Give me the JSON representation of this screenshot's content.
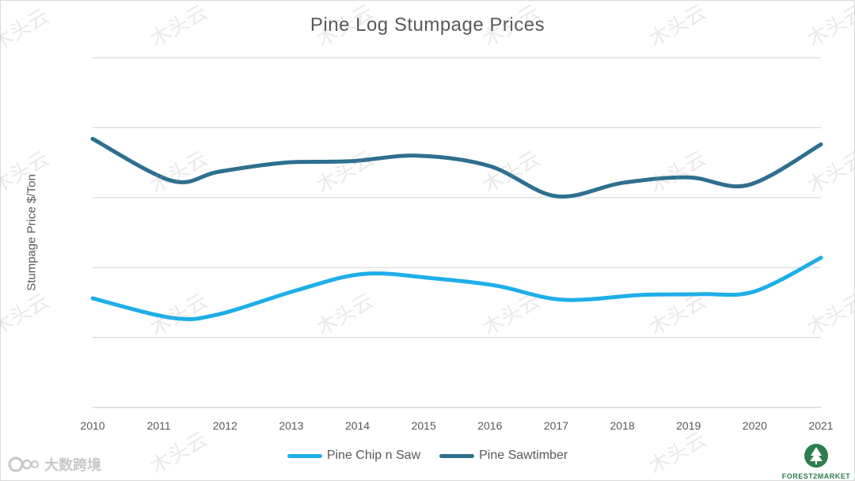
{
  "chart_data": {
    "type": "line",
    "title": "Pine Log Stumpage Prices",
    "xlabel": "",
    "ylabel": "Stumpage Price $/Ton",
    "categories": [
      "2010",
      "2011",
      "2012",
      "2013",
      "2014",
      "2015",
      "2016",
      "2017",
      "2018",
      "2019",
      "2020",
      "2021"
    ],
    "x": [
      2010,
      2011,
      2012,
      2013,
      2014,
      2015,
      2016,
      2017,
      2018,
      2019,
      2020,
      2021
    ],
    "ylim": [
      0,
      5
    ],
    "y_gridlines": [
      0,
      1,
      2,
      3,
      4,
      5
    ],
    "y_tick_labels_shown": false,
    "series": [
      {
        "name": "Pine Chip n Saw",
        "color": "#1eaee8",
        "points": [
          [
            2010,
            1.56
          ],
          [
            2011.2,
            1.28
          ],
          [
            2011.9,
            1.33
          ],
          [
            2013.1,
            1.68
          ],
          [
            2014.1,
            1.91
          ],
          [
            2015.2,
            1.84
          ],
          [
            2016.1,
            1.74
          ],
          [
            2017.1,
            1.54
          ],
          [
            2018.3,
            1.61
          ],
          [
            2019.2,
            1.62
          ],
          [
            2020,
            1.66
          ],
          [
            2021,
            2.14
          ]
        ]
      },
      {
        "name": "Pine Sawtimber",
        "color": "#2d6f8e",
        "points": [
          [
            2010,
            3.84
          ],
          [
            2011.2,
            3.24
          ],
          [
            2011.9,
            3.37
          ],
          [
            2012.9,
            3.5
          ],
          [
            2013.9,
            3.52
          ],
          [
            2014.9,
            3.6
          ],
          [
            2016,
            3.45
          ],
          [
            2017,
            3.02
          ],
          [
            2018,
            3.21
          ],
          [
            2019,
            3.29
          ],
          [
            2019.9,
            3.18
          ],
          [
            2021,
            3.76
          ]
        ]
      }
    ]
  },
  "legend": {
    "item1": "Pine Chip n Saw",
    "item2": "Pine Sawtimber"
  },
  "watermarks": {
    "source_text": "大数跨境",
    "overlay_text": "木头云",
    "logo_name": "FOREST2MARKET"
  }
}
